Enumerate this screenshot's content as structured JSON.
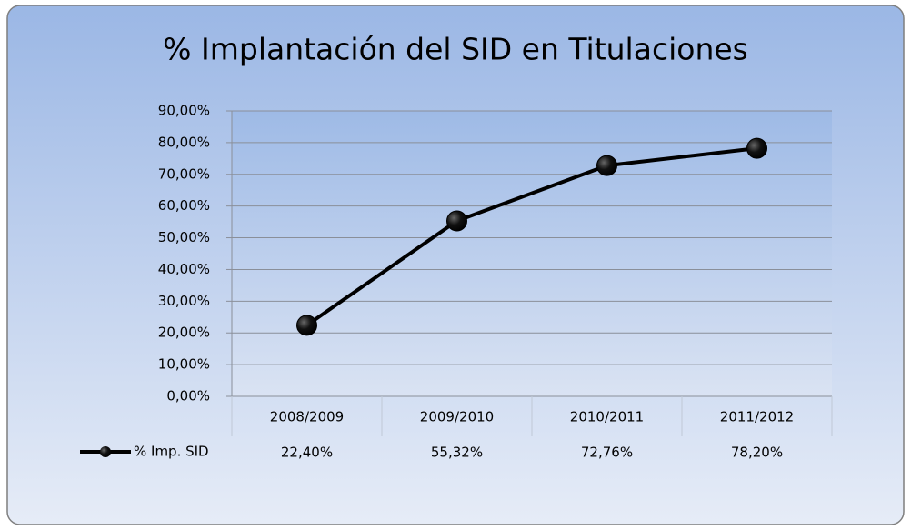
{
  "chart_data": {
    "type": "line",
    "title": "% Implantación del SID en Titulaciones",
    "categories": [
      "2008/2009",
      "2009/2010",
      "2010/2011",
      "2011/2012"
    ],
    "series": [
      {
        "name": "% Imp. SID",
        "color": "#000000",
        "values": [
          22.4,
          55.32,
          72.76,
          78.2
        ],
        "value_labels": [
          "22,40%",
          "55,32%",
          "72,76%",
          "78,20%"
        ]
      }
    ],
    "ylim": [
      0,
      90
    ],
    "yticks": [
      {
        "value": 0,
        "label": "0,00%"
      },
      {
        "value": 10,
        "label": "10,00%"
      },
      {
        "value": 20,
        "label": "20,00%"
      },
      {
        "value": 30,
        "label": "30,00%"
      },
      {
        "value": 40,
        "label": "40,00%"
      },
      {
        "value": 50,
        "label": "50,00%"
      },
      {
        "value": 60,
        "label": "60,00%"
      },
      {
        "value": 70,
        "label": "70,00%"
      },
      {
        "value": 80,
        "label": "80,00%"
      },
      {
        "value": 90,
        "label": "90,00%"
      }
    ],
    "grid": true
  }
}
